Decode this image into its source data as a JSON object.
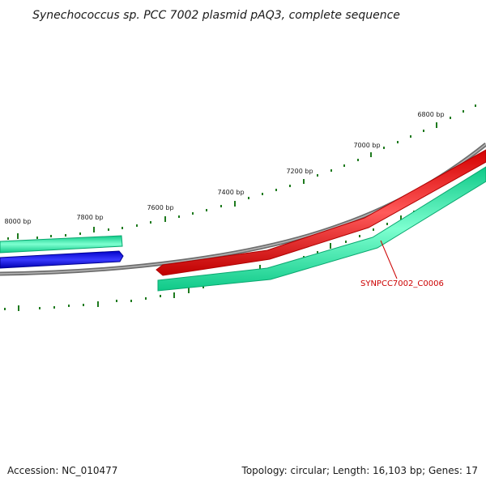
{
  "title": "Synechococcus sp. PCC 7002 plasmid pAQ3, complete sequence",
  "ruler": {
    "labels": [
      "6800 bp",
      "7000 bp",
      "7200 bp",
      "7400 bp",
      "7600 bp",
      "7800 bp",
      "8000 bp"
    ],
    "color": "#1e7a1e"
  },
  "backbone": {
    "color": "#808080"
  },
  "features": [
    {
      "name": "SYNPCC7002_C0006",
      "color": "#ff0000",
      "strand": "forward"
    }
  ],
  "cds_track": {
    "color": "#20e0a0"
  },
  "left_gene": {
    "color": "#0000ff"
  },
  "footer": {
    "accession": "Accession: NC_010477",
    "summary": "Topology: circular; Length: 16,103 bp; Genes: 17"
  },
  "colors": {
    "label": "#cc0000",
    "tick": "#1e7a1e"
  }
}
